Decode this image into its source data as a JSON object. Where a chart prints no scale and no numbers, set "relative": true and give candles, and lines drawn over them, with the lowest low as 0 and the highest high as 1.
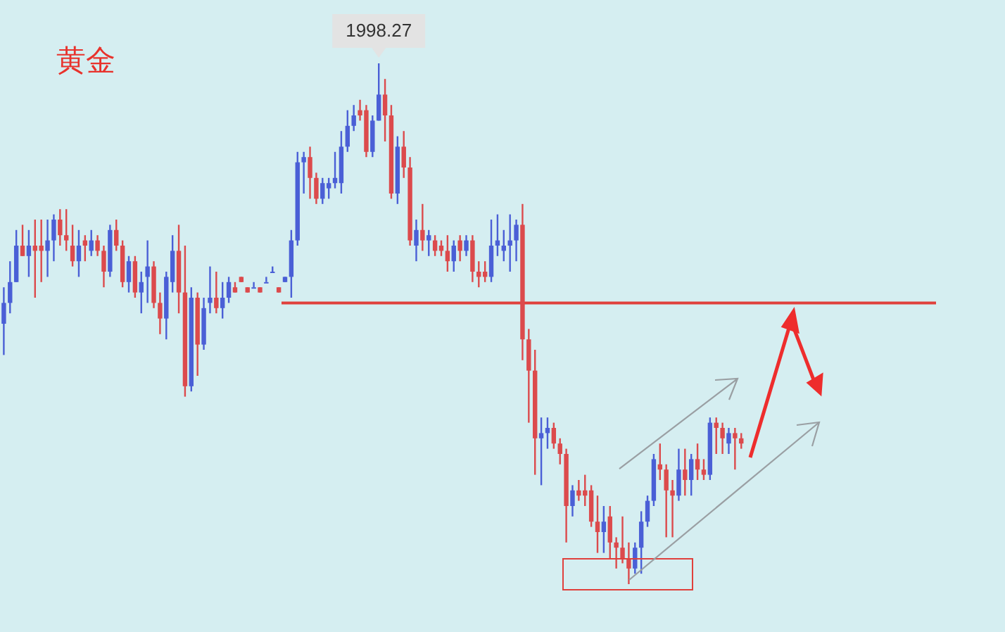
{
  "chart_data": {
    "type": "candlestick",
    "title": "黄金",
    "relative": true,
    "categories": [
      null,
      null,
      null,
      null,
      null,
      null,
      null,
      null,
      null,
      null,
      null,
      null,
      null,
      null,
      null,
      null,
      null,
      null,
      null,
      null,
      null,
      null,
      null,
      null,
      null,
      null,
      null,
      null,
      null,
      null,
      null,
      null,
      null,
      null,
      null,
      null,
      null,
      null,
      null,
      null,
      null,
      null,
      null,
      null,
      null,
      null,
      null,
      null,
      null,
      null,
      null,
      null,
      null,
      null,
      null,
      null,
      null,
      null,
      null,
      null,
      null,
      null,
      null,
      null,
      null,
      null,
      null,
      null,
      null,
      null,
      null,
      null,
      null,
      null,
      null,
      null,
      null,
      null,
      null,
      null,
      null,
      null,
      null,
      null,
      null,
      null,
      null,
      null,
      null,
      null,
      null,
      null,
      null,
      null,
      null,
      null,
      null,
      null,
      null,
      null,
      null,
      null,
      null,
      null,
      null,
      null,
      null,
      null,
      null,
      null,
      null,
      null,
      null,
      null,
      null,
      null,
      null,
      null,
      null
    ],
    "ohlc": [
      [
        0.5,
        0.57,
        0.44,
        0.54
      ],
      [
        0.54,
        0.62,
        0.52,
        0.58
      ],
      [
        0.58,
        0.68,
        0.58,
        0.65
      ],
      [
        0.65,
        0.69,
        0.63,
        0.63
      ],
      [
        0.63,
        0.68,
        0.59,
        0.65
      ],
      [
        0.65,
        0.7,
        0.55,
        0.64
      ],
      [
        0.65,
        0.7,
        0.58,
        0.64
      ],
      [
        0.64,
        0.7,
        0.59,
        0.66
      ],
      [
        0.66,
        0.71,
        0.62,
        0.7
      ],
      [
        0.7,
        0.72,
        0.65,
        0.67
      ],
      [
        0.67,
        0.72,
        0.64,
        0.66
      ],
      [
        0.65,
        0.69,
        0.61,
        0.62
      ],
      [
        0.62,
        0.68,
        0.59,
        0.65
      ],
      [
        0.66,
        0.67,
        0.62,
        0.65
      ],
      [
        0.64,
        0.68,
        0.63,
        0.66
      ],
      [
        0.66,
        0.67,
        0.63,
        0.64
      ],
      [
        0.64,
        0.65,
        0.57,
        0.6
      ],
      [
        0.6,
        0.69,
        0.59,
        0.68
      ],
      [
        0.68,
        0.7,
        0.64,
        0.65
      ],
      [
        0.65,
        0.66,
        0.57,
        0.58
      ],
      [
        0.58,
        0.63,
        0.56,
        0.62
      ],
      [
        0.62,
        0.63,
        0.55,
        0.56
      ],
      [
        0.56,
        0.6,
        0.52,
        0.58
      ],
      [
        0.59,
        0.66,
        0.54,
        0.61
      ],
      [
        0.61,
        0.62,
        0.53,
        0.54
      ],
      [
        0.54,
        0.56,
        0.48,
        0.51
      ],
      [
        0.51,
        0.6,
        0.47,
        0.59
      ],
      [
        0.58,
        0.67,
        0.56,
        0.64
      ],
      [
        0.64,
        0.69,
        0.52,
        0.56
      ],
      [
        0.56,
        0.65,
        0.36,
        0.38
      ],
      [
        0.38,
        0.57,
        0.37,
        0.55
      ],
      [
        0.55,
        0.56,
        0.4,
        0.46
      ],
      [
        0.46,
        0.55,
        0.45,
        0.53
      ],
      [
        0.54,
        0.61,
        0.52,
        0.55
      ],
      [
        0.55,
        0.6,
        0.52,
        0.53
      ],
      [
        0.53,
        0.58,
        0.51,
        0.55
      ],
      [
        0.55,
        0.59,
        0.54,
        0.58
      ],
      [
        0.57,
        0.58,
        0.56,
        0.56
      ],
      [
        0.59,
        0.59,
        0.58,
        0.58
      ],
      [
        0.57,
        0.57,
        0.56,
        0.56
      ],
      [
        0.57,
        0.58,
        0.57,
        0.57
      ],
      [
        0.57,
        0.57,
        0.56,
        0.56
      ],
      [
        0.58,
        0.59,
        0.58,
        0.58
      ],
      [
        0.6,
        0.61,
        0.6,
        0.6
      ],
      [
        0.57,
        0.57,
        0.56,
        0.56
      ],
      [
        0.58,
        0.59,
        0.58,
        0.59
      ],
      [
        0.59,
        0.68,
        0.55,
        0.66
      ],
      [
        0.66,
        0.83,
        0.65,
        0.81
      ],
      [
        0.81,
        0.83,
        0.75,
        0.82
      ],
      [
        0.82,
        0.84,
        0.74,
        0.78
      ],
      [
        0.78,
        0.79,
        0.73,
        0.74
      ],
      [
        0.74,
        0.78,
        0.73,
        0.77
      ],
      [
        0.76,
        0.78,
        0.74,
        0.77
      ],
      [
        0.77,
        0.83,
        0.76,
        0.78
      ],
      [
        0.77,
        0.87,
        0.75,
        0.84
      ],
      [
        0.84,
        0.91,
        0.83,
        0.88
      ],
      [
        0.88,
        0.92,
        0.87,
        0.9
      ],
      [
        0.91,
        0.93,
        0.89,
        0.9
      ],
      [
        0.91,
        0.92,
        0.82,
        0.83
      ],
      [
        0.83,
        0.9,
        0.82,
        0.89
      ],
      [
        0.89,
        1.0,
        0.89,
        0.94
      ],
      [
        0.94,
        0.97,
        0.85,
        0.9
      ],
      [
        0.9,
        0.92,
        0.74,
        0.75
      ],
      [
        0.75,
        0.86,
        0.73,
        0.84
      ],
      [
        0.84,
        0.87,
        0.78,
        0.8
      ],
      [
        0.8,
        0.82,
        0.65,
        0.66
      ],
      [
        0.65,
        0.7,
        0.62,
        0.68
      ],
      [
        0.68,
        0.73,
        0.64,
        0.66
      ],
      [
        0.66,
        0.68,
        0.63,
        0.67
      ],
      [
        0.66,
        0.67,
        0.63,
        0.64
      ],
      [
        0.65,
        0.66,
        0.63,
        0.64
      ],
      [
        0.64,
        0.67,
        0.6,
        0.62
      ],
      [
        0.62,
        0.66,
        0.6,
        0.65
      ],
      [
        0.66,
        0.67,
        0.62,
        0.64
      ],
      [
        0.64,
        0.67,
        0.63,
        0.66
      ],
      [
        0.66,
        0.67,
        0.58,
        0.6
      ],
      [
        0.6,
        0.62,
        0.57,
        0.59
      ],
      [
        0.6,
        0.62,
        0.58,
        0.59
      ],
      [
        0.59,
        0.7,
        0.58,
        0.65
      ],
      [
        0.65,
        0.71,
        0.63,
        0.66
      ],
      [
        0.64,
        0.68,
        0.62,
        0.65
      ],
      [
        0.65,
        0.71,
        0.6,
        0.66
      ],
      [
        0.66,
        0.7,
        0.62,
        0.69
      ],
      [
        0.69,
        0.73,
        0.43,
        0.47
      ],
      [
        0.47,
        0.49,
        0.31,
        0.41
      ],
      [
        0.41,
        0.45,
        0.21,
        0.28
      ],
      [
        0.28,
        0.32,
        0.19,
        0.29
      ],
      [
        0.29,
        0.32,
        0.26,
        0.3
      ],
      [
        0.3,
        0.31,
        0.26,
        0.27
      ],
      [
        0.27,
        0.28,
        0.23,
        0.25
      ],
      [
        0.25,
        0.26,
        0.08,
        0.15
      ],
      [
        0.15,
        0.19,
        0.13,
        0.18
      ],
      [
        0.18,
        0.2,
        0.16,
        0.17
      ],
      [
        0.18,
        0.21,
        0.15,
        0.17
      ],
      [
        0.18,
        0.19,
        0.11,
        0.12
      ],
      [
        0.12,
        0.17,
        0.06,
        0.1
      ],
      [
        0.1,
        0.15,
        0.06,
        0.12
      ],
      [
        0.13,
        0.15,
        0.05,
        0.08
      ],
      [
        0.08,
        0.09,
        0.03,
        0.07
      ],
      [
        0.07,
        0.13,
        0.04,
        0.05
      ],
      [
        0.05,
        0.08,
        0.0,
        0.03
      ],
      [
        0.03,
        0.08,
        0.02,
        0.07
      ],
      [
        0.07,
        0.14,
        0.02,
        0.12
      ],
      [
        0.12,
        0.17,
        0.11,
        0.16
      ],
      [
        0.16,
        0.25,
        0.15,
        0.24
      ],
      [
        0.23,
        0.27,
        0.2,
        0.22
      ],
      [
        0.22,
        0.23,
        0.09,
        0.18
      ],
      [
        0.18,
        0.2,
        0.09,
        0.17
      ],
      [
        0.17,
        0.26,
        0.16,
        0.22
      ],
      [
        0.22,
        0.26,
        0.17,
        0.2
      ],
      [
        0.2,
        0.25,
        0.17,
        0.24
      ],
      [
        0.24,
        0.27,
        0.2,
        0.22
      ],
      [
        0.22,
        0.24,
        0.2,
        0.21
      ],
      [
        0.21,
        0.32,
        0.2,
        0.31
      ],
      [
        0.31,
        0.32,
        0.25,
        0.3
      ],
      [
        0.3,
        0.31,
        0.25,
        0.28
      ],
      [
        0.27,
        0.3,
        0.25,
        0.29
      ],
      [
        0.29,
        0.3,
        0.22,
        0.28
      ],
      [
        0.28,
        0.29,
        0.26,
        0.27
      ]
    ],
    "ref_lines": [
      {
        "axis": "y",
        "value": 0.54,
        "color": "#e0403c"
      }
    ],
    "annotations": [
      {
        "text": "1998.27",
        "y": 1
      }
    ]
  }
}
